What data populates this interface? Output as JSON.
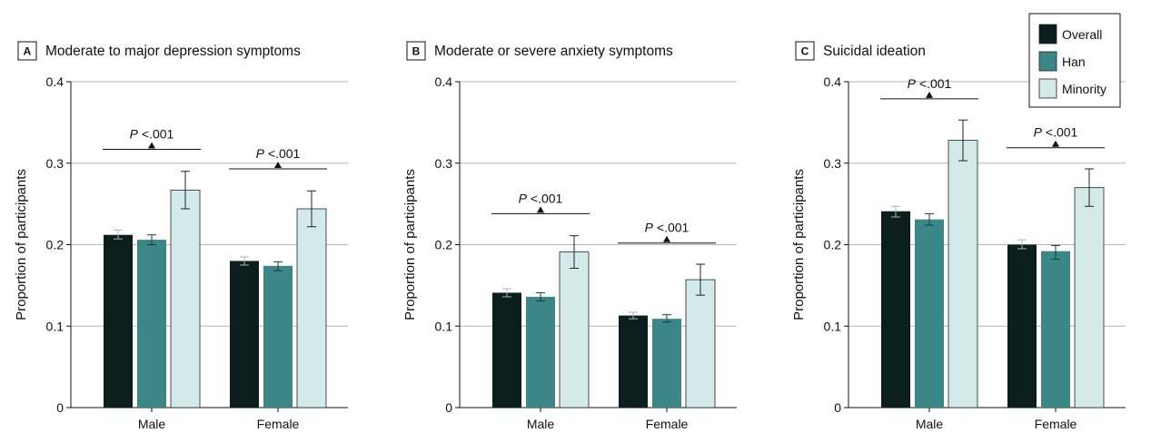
{
  "legend": {
    "items": [
      {
        "label": "Overall",
        "color": "#0b1d1d"
      },
      {
        "label": "Han",
        "color": "#3b8686"
      },
      {
        "label": "Minority",
        "color": "#d4e9ea"
      }
    ]
  },
  "chart_data": [
    {
      "type": "bar",
      "panel": "A",
      "title": "Moderate to major depression symptoms",
      "ylabel": "Proportion of participants",
      "ylim": [
        0,
        0.4
      ],
      "yticks": [
        "0",
        "0.1",
        "0.2",
        "0.3",
        "0.4"
      ],
      "grid": true,
      "categories": [
        "Male",
        "Female"
      ],
      "series": [
        {
          "name": "Overall",
          "values": [
            0.212,
            0.18
          ],
          "err_low": [
            0.207,
            0.175
          ],
          "err_high": [
            0.218,
            0.185
          ]
        },
        {
          "name": "Han",
          "values": [
            0.206,
            0.174
          ],
          "err_low": [
            0.2,
            0.168
          ],
          "err_high": [
            0.212,
            0.179
          ]
        },
        {
          "name": "Minority",
          "values": [
            0.267,
            0.244
          ],
          "err_low": [
            0.244,
            0.222
          ],
          "err_high": [
            0.29,
            0.266
          ]
        }
      ],
      "annotations": [
        {
          "category": "Male",
          "text": "P <.001",
          "y": 0.317
        },
        {
          "category": "Female",
          "text": "P <.001",
          "y": 0.293
        }
      ]
    },
    {
      "type": "bar",
      "panel": "B",
      "title": "Moderate or severe anxiety symptoms",
      "ylabel": "Proportion of participants",
      "ylim": [
        0,
        0.4
      ],
      "yticks": [
        "0",
        "0.1",
        "0.2",
        "0.3",
        "0.4"
      ],
      "grid": true,
      "categories": [
        "Male",
        "Female"
      ],
      "series": [
        {
          "name": "Overall",
          "values": [
            0.141,
            0.113
          ],
          "err_low": [
            0.136,
            0.109
          ],
          "err_high": [
            0.146,
            0.117
          ]
        },
        {
          "name": "Han",
          "values": [
            0.136,
            0.109
          ],
          "err_low": [
            0.131,
            0.105
          ],
          "err_high": [
            0.141,
            0.114
          ]
        },
        {
          "name": "Minority",
          "values": [
            0.191,
            0.157
          ],
          "err_low": [
            0.171,
            0.138
          ],
          "err_high": [
            0.211,
            0.176
          ]
        }
      ],
      "annotations": [
        {
          "category": "Male",
          "text": "P <.001",
          "y": 0.238
        },
        {
          "category": "Female",
          "text": "P <.001",
          "y": 0.202
        }
      ]
    },
    {
      "type": "bar",
      "panel": "C",
      "title": "Suicidal ideation",
      "ylabel": "Proportion of participants",
      "ylim": [
        0,
        0.4
      ],
      "yticks": [
        "0",
        "0.1",
        "0.2",
        "0.3",
        "0.4"
      ],
      "grid": true,
      "categories": [
        "Male",
        "Female"
      ],
      "series": [
        {
          "name": "Overall",
          "values": [
            0.241,
            0.2
          ],
          "err_low": [
            0.234,
            0.195
          ],
          "err_high": [
            0.247,
            0.206
          ]
        },
        {
          "name": "Han",
          "values": [
            0.231,
            0.192
          ],
          "err_low": [
            0.224,
            0.182
          ],
          "err_high": [
            0.238,
            0.199
          ]
        },
        {
          "name": "Minority",
          "values": [
            0.328,
            0.27
          ],
          "err_low": [
            0.303,
            0.247
          ],
          "err_high": [
            0.353,
            0.293
          ]
        }
      ],
      "annotations": [
        {
          "category": "Male",
          "text": "P <.001",
          "y": 0.379
        },
        {
          "category": "Female",
          "text": "P <.001",
          "y": 0.319
        }
      ]
    }
  ]
}
